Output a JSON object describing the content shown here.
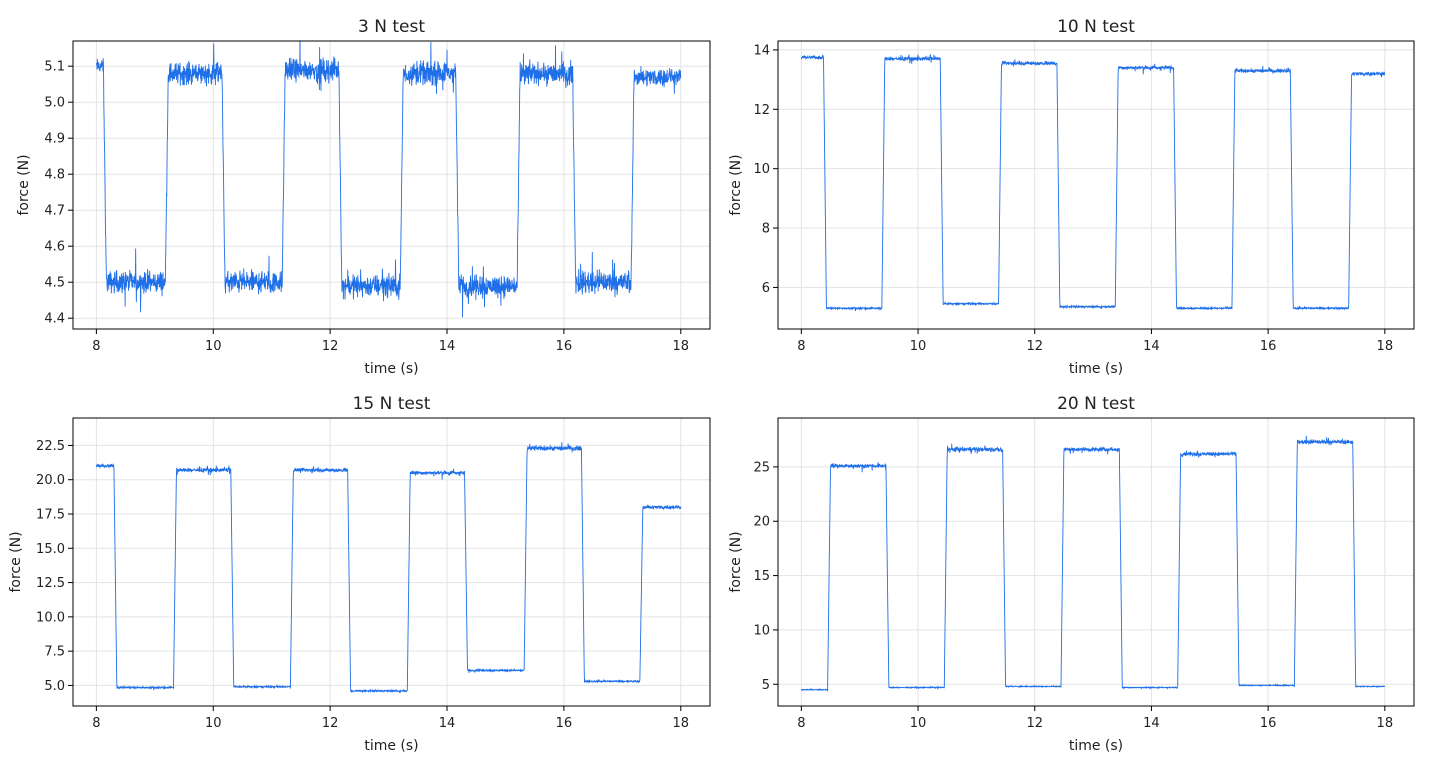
{
  "chart_data": [
    {
      "type": "line",
      "title": "3 N test",
      "xlabel": "time (s)",
      "ylabel": "force (N)",
      "xlim": [
        7.6,
        18.5
      ],
      "ylim": [
        4.37,
        5.17
      ],
      "xticks": [
        8,
        10,
        12,
        14,
        16,
        18
      ],
      "yticks": [
        4.4,
        4.5,
        4.6,
        4.7,
        4.8,
        4.9,
        5.0,
        5.1
      ],
      "yticklabels": [
        "4.4",
        "4.5",
        "4.6",
        "4.7",
        "4.8",
        "4.9",
        "5.0",
        "5.1"
      ],
      "grid": true,
      "line_color": "#1f6fe8",
      "series": [
        {
          "segments": [
            {
              "x0": 8.0,
              "x1": 8.12,
              "level": 5.1,
              "noise": 0.03
            },
            {
              "x0": 8.12,
              "x1": 9.18,
              "level": 4.5,
              "noise": 0.045
            },
            {
              "x0": 9.18,
              "x1": 10.15,
              "level": 5.08,
              "noise": 0.045
            },
            {
              "x0": 10.15,
              "x1": 11.18,
              "level": 4.5,
              "noise": 0.045
            },
            {
              "x0": 11.18,
              "x1": 12.15,
              "level": 5.09,
              "noise": 0.045
            },
            {
              "x0": 12.15,
              "x1": 13.2,
              "level": 4.49,
              "noise": 0.045
            },
            {
              "x0": 13.2,
              "x1": 14.15,
              "level": 5.08,
              "noise": 0.045
            },
            {
              "x0": 14.15,
              "x1": 15.2,
              "level": 4.49,
              "noise": 0.045
            },
            {
              "x0": 15.2,
              "x1": 16.15,
              "level": 5.08,
              "noise": 0.045
            },
            {
              "x0": 16.15,
              "x1": 17.15,
              "level": 4.5,
              "noise": 0.045
            },
            {
              "x0": 17.15,
              "x1": 18.0,
              "level": 5.07,
              "noise": 0.035
            }
          ]
        }
      ]
    },
    {
      "type": "line",
      "title": "10 N test",
      "xlabel": "time (s)",
      "ylabel": "force (N)",
      "xlim": [
        7.6,
        18.5
      ],
      "ylim": [
        4.6,
        14.3
      ],
      "xticks": [
        8,
        10,
        12,
        14,
        16,
        18
      ],
      "yticks": [
        6,
        8,
        10,
        12,
        14
      ],
      "yticklabels": [
        "6",
        "8",
        "10",
        "12",
        "14"
      ],
      "grid": true,
      "line_color": "#1f6fe8",
      "series": [
        {
          "segments": [
            {
              "x0": 8.0,
              "x1": 8.38,
              "level": 13.75,
              "noise": 0.08
            },
            {
              "x0": 8.38,
              "x1": 9.38,
              "level": 5.3,
              "noise": 0.04
            },
            {
              "x0": 9.38,
              "x1": 10.38,
              "level": 13.7,
              "noise": 0.09
            },
            {
              "x0": 10.38,
              "x1": 11.38,
              "level": 5.45,
              "noise": 0.04
            },
            {
              "x0": 11.38,
              "x1": 12.38,
              "level": 13.55,
              "noise": 0.09
            },
            {
              "x0": 12.38,
              "x1": 13.38,
              "level": 5.35,
              "noise": 0.04
            },
            {
              "x0": 13.38,
              "x1": 14.38,
              "level": 13.4,
              "noise": 0.09
            },
            {
              "x0": 14.38,
              "x1": 15.38,
              "level": 5.3,
              "noise": 0.04
            },
            {
              "x0": 15.38,
              "x1": 16.38,
              "level": 13.3,
              "noise": 0.09
            },
            {
              "x0": 16.38,
              "x1": 17.38,
              "level": 5.3,
              "noise": 0.04
            },
            {
              "x0": 17.38,
              "x1": 18.0,
              "level": 13.2,
              "noise": 0.09
            }
          ]
        }
      ]
    },
    {
      "type": "line",
      "title": "15 N test",
      "xlabel": "time (s)",
      "ylabel": "force (N)",
      "xlim": [
        7.6,
        18.5
      ],
      "ylim": [
        3.5,
        24.5
      ],
      "xticks": [
        8,
        10,
        12,
        14,
        16,
        18
      ],
      "yticks": [
        5.0,
        7.5,
        10.0,
        12.5,
        15.0,
        17.5,
        20.0,
        22.5
      ],
      "yticklabels": [
        "5.0",
        "7.5",
        "10.0",
        "12.5",
        "15.0",
        "17.5",
        "20.0",
        "22.5"
      ],
      "grid": true,
      "line_color": "#1f6fe8",
      "series": [
        {
          "segments": [
            {
              "x0": 8.0,
              "x1": 8.3,
              "level": 21.0,
              "noise": 0.2
            },
            {
              "x0": 8.3,
              "x1": 9.32,
              "level": 4.85,
              "noise": 0.08
            },
            {
              "x0": 9.32,
              "x1": 10.3,
              "level": 20.7,
              "noise": 0.2
            },
            {
              "x0": 10.3,
              "x1": 11.32,
              "level": 4.9,
              "noise": 0.08
            },
            {
              "x0": 11.32,
              "x1": 12.3,
              "level": 20.7,
              "noise": 0.2
            },
            {
              "x0": 12.3,
              "x1": 13.32,
              "level": 4.6,
              "noise": 0.08
            },
            {
              "x0": 13.32,
              "x1": 14.3,
              "level": 20.5,
              "noise": 0.2
            },
            {
              "x0": 14.3,
              "x1": 15.32,
              "level": 6.1,
              "noise": 0.1
            },
            {
              "x0": 15.32,
              "x1": 16.3,
              "level": 22.3,
              "noise": 0.25
            },
            {
              "x0": 16.3,
              "x1": 17.3,
              "level": 5.3,
              "noise": 0.08
            },
            {
              "x0": 17.3,
              "x1": 18.0,
              "level": 18.0,
              "noise": 0.2
            }
          ]
        }
      ]
    },
    {
      "type": "line",
      "title": "20 N test",
      "xlabel": "time (s)",
      "ylabel": "force (N)",
      "xlim": [
        7.6,
        18.5
      ],
      "ylim": [
        3.0,
        29.5
      ],
      "xticks": [
        8,
        10,
        12,
        14,
        16,
        18
      ],
      "yticks": [
        5,
        10,
        15,
        20,
        25
      ],
      "yticklabels": [
        "5",
        "10",
        "15",
        "20",
        "25"
      ],
      "grid": true,
      "line_color": "#1f6fe8",
      "series": [
        {
          "segments": [
            {
              "x0": 8.0,
              "x1": 8.45,
              "level": 4.5,
              "noise": 0.06
            },
            {
              "x0": 8.45,
              "x1": 9.45,
              "level": 25.1,
              "noise": 0.25
            },
            {
              "x0": 9.45,
              "x1": 10.45,
              "level": 4.7,
              "noise": 0.06
            },
            {
              "x0": 10.45,
              "x1": 11.45,
              "level": 26.6,
              "noise": 0.3
            },
            {
              "x0": 11.45,
              "x1": 12.45,
              "level": 4.8,
              "noise": 0.06
            },
            {
              "x0": 12.45,
              "x1": 13.45,
              "level": 26.6,
              "noise": 0.25
            },
            {
              "x0": 13.45,
              "x1": 14.45,
              "level": 4.7,
              "noise": 0.06
            },
            {
              "x0": 14.45,
              "x1": 15.45,
              "level": 26.2,
              "noise": 0.25
            },
            {
              "x0": 15.45,
              "x1": 16.45,
              "level": 4.9,
              "noise": 0.06
            },
            {
              "x0": 16.45,
              "x1": 17.45,
              "level": 27.3,
              "noise": 0.3
            },
            {
              "x0": 17.45,
              "x1": 18.0,
              "level": 4.8,
              "noise": 0.06
            }
          ]
        }
      ]
    }
  ]
}
